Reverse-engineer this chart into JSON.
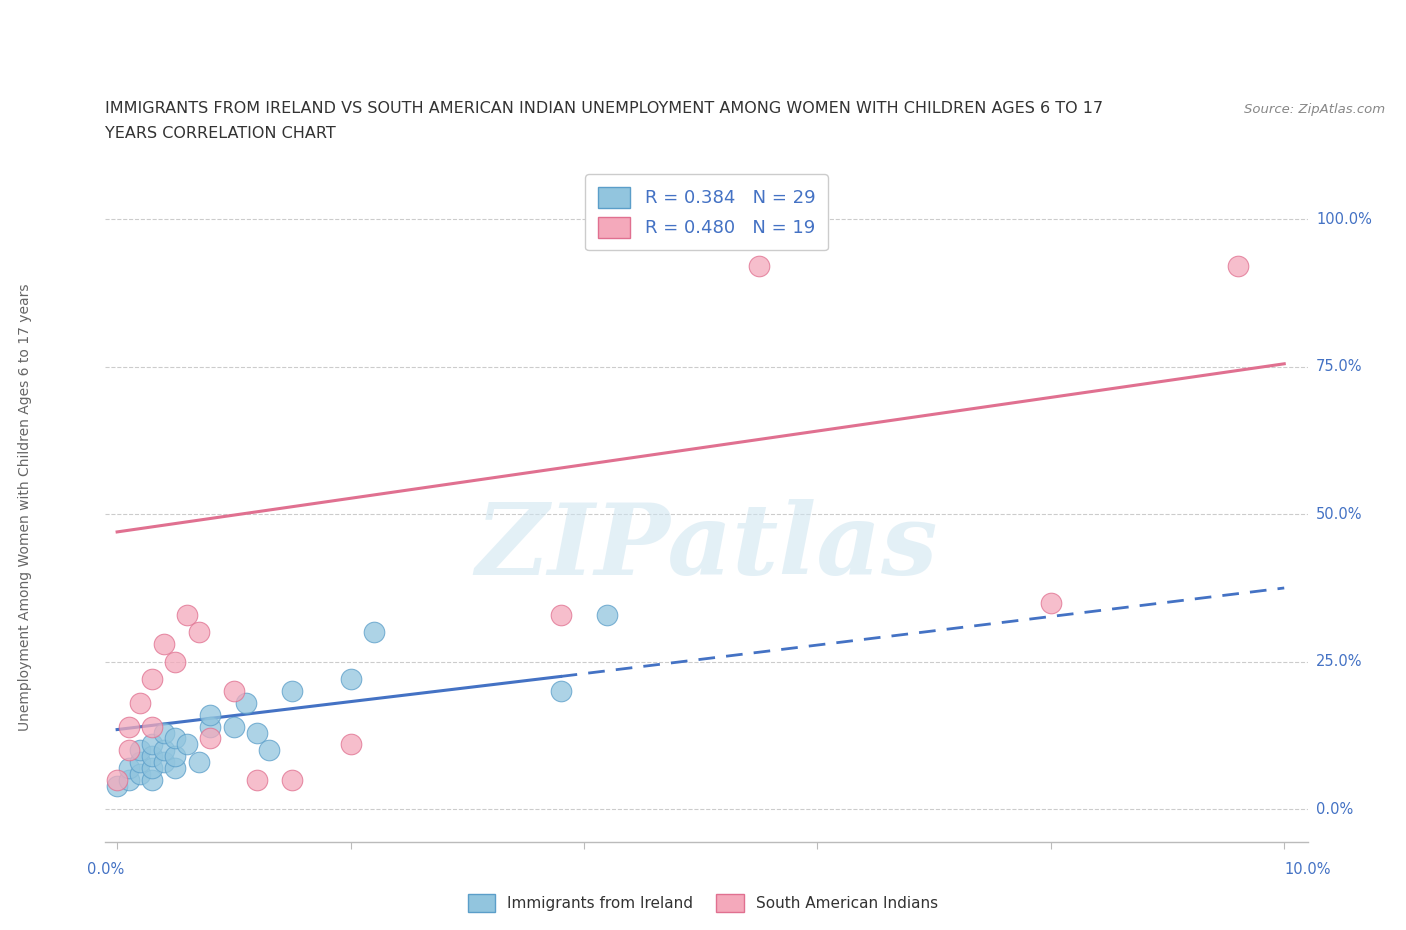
{
  "title_line1": "IMMIGRANTS FROM IRELAND VS SOUTH AMERICAN INDIAN UNEMPLOYMENT AMONG WOMEN WITH CHILDREN AGES 6 TO 17",
  "title_line2": "YEARS CORRELATION CHART",
  "source": "Source: ZipAtlas.com",
  "ylabel": "Unemployment Among Women with Children Ages 6 to 17 years",
  "xlim": [
    -0.001,
    0.102
  ],
  "ylim": [
    -0.055,
    1.08
  ],
  "yticks": [
    0.0,
    0.25,
    0.5,
    0.75,
    1.0
  ],
  "ytick_labels": [
    "0.0%",
    "25.0%",
    "50.0%",
    "75.0%",
    "100.0%"
  ],
  "xtick_positions": [
    0.0,
    0.02,
    0.04,
    0.06,
    0.08,
    0.1
  ],
  "watermark": "ZIPatlas",
  "ireland_color": "#92c5de",
  "ireland_edge": "#5b9ec9",
  "sa_indian_color": "#f4a9bb",
  "sa_indian_edge": "#e07090",
  "ireland_color_trend": "#4472c4",
  "sa_indian_color_trend": "#e07090",
  "ireland_scatter_x": [
    0.0,
    0.001,
    0.001,
    0.002,
    0.002,
    0.002,
    0.003,
    0.003,
    0.003,
    0.003,
    0.004,
    0.004,
    0.004,
    0.005,
    0.005,
    0.005,
    0.006,
    0.007,
    0.008,
    0.008,
    0.01,
    0.011,
    0.012,
    0.013,
    0.015,
    0.02,
    0.022,
    0.038,
    0.042
  ],
  "ireland_scatter_y": [
    0.04,
    0.05,
    0.07,
    0.06,
    0.08,
    0.1,
    0.05,
    0.07,
    0.09,
    0.11,
    0.08,
    0.1,
    0.13,
    0.07,
    0.09,
    0.12,
    0.11,
    0.08,
    0.14,
    0.16,
    0.14,
    0.18,
    0.13,
    0.1,
    0.2,
    0.22,
    0.3,
    0.2,
    0.33
  ],
  "sa_indian_scatter_x": [
    0.0,
    0.001,
    0.001,
    0.002,
    0.003,
    0.003,
    0.004,
    0.005,
    0.006,
    0.007,
    0.008,
    0.01,
    0.012,
    0.015,
    0.02,
    0.038,
    0.055,
    0.08,
    0.096
  ],
  "sa_indian_scatter_y": [
    0.05,
    0.1,
    0.14,
    0.18,
    0.14,
    0.22,
    0.28,
    0.25,
    0.33,
    0.3,
    0.12,
    0.2,
    0.05,
    0.05,
    0.11,
    0.33,
    0.92,
    0.35,
    0.92
  ],
  "ireland_solid_trend_x": [
    0.0,
    0.038
  ],
  "ireland_solid_trend_y": [
    0.135,
    0.225
  ],
  "ireland_dashed_trend_x": [
    0.038,
    0.1
  ],
  "ireland_dashed_trend_y": [
    0.225,
    0.375
  ],
  "sa_indian_solid_trend_x": [
    0.0,
    0.1
  ],
  "sa_indian_solid_trend_y": [
    0.47,
    0.755
  ],
  "grid_color": "#cccccc",
  "background_color": "#ffffff",
  "title_color": "#333333",
  "axis_label_color": "#666666",
  "tick_label_color": "#4472c4"
}
